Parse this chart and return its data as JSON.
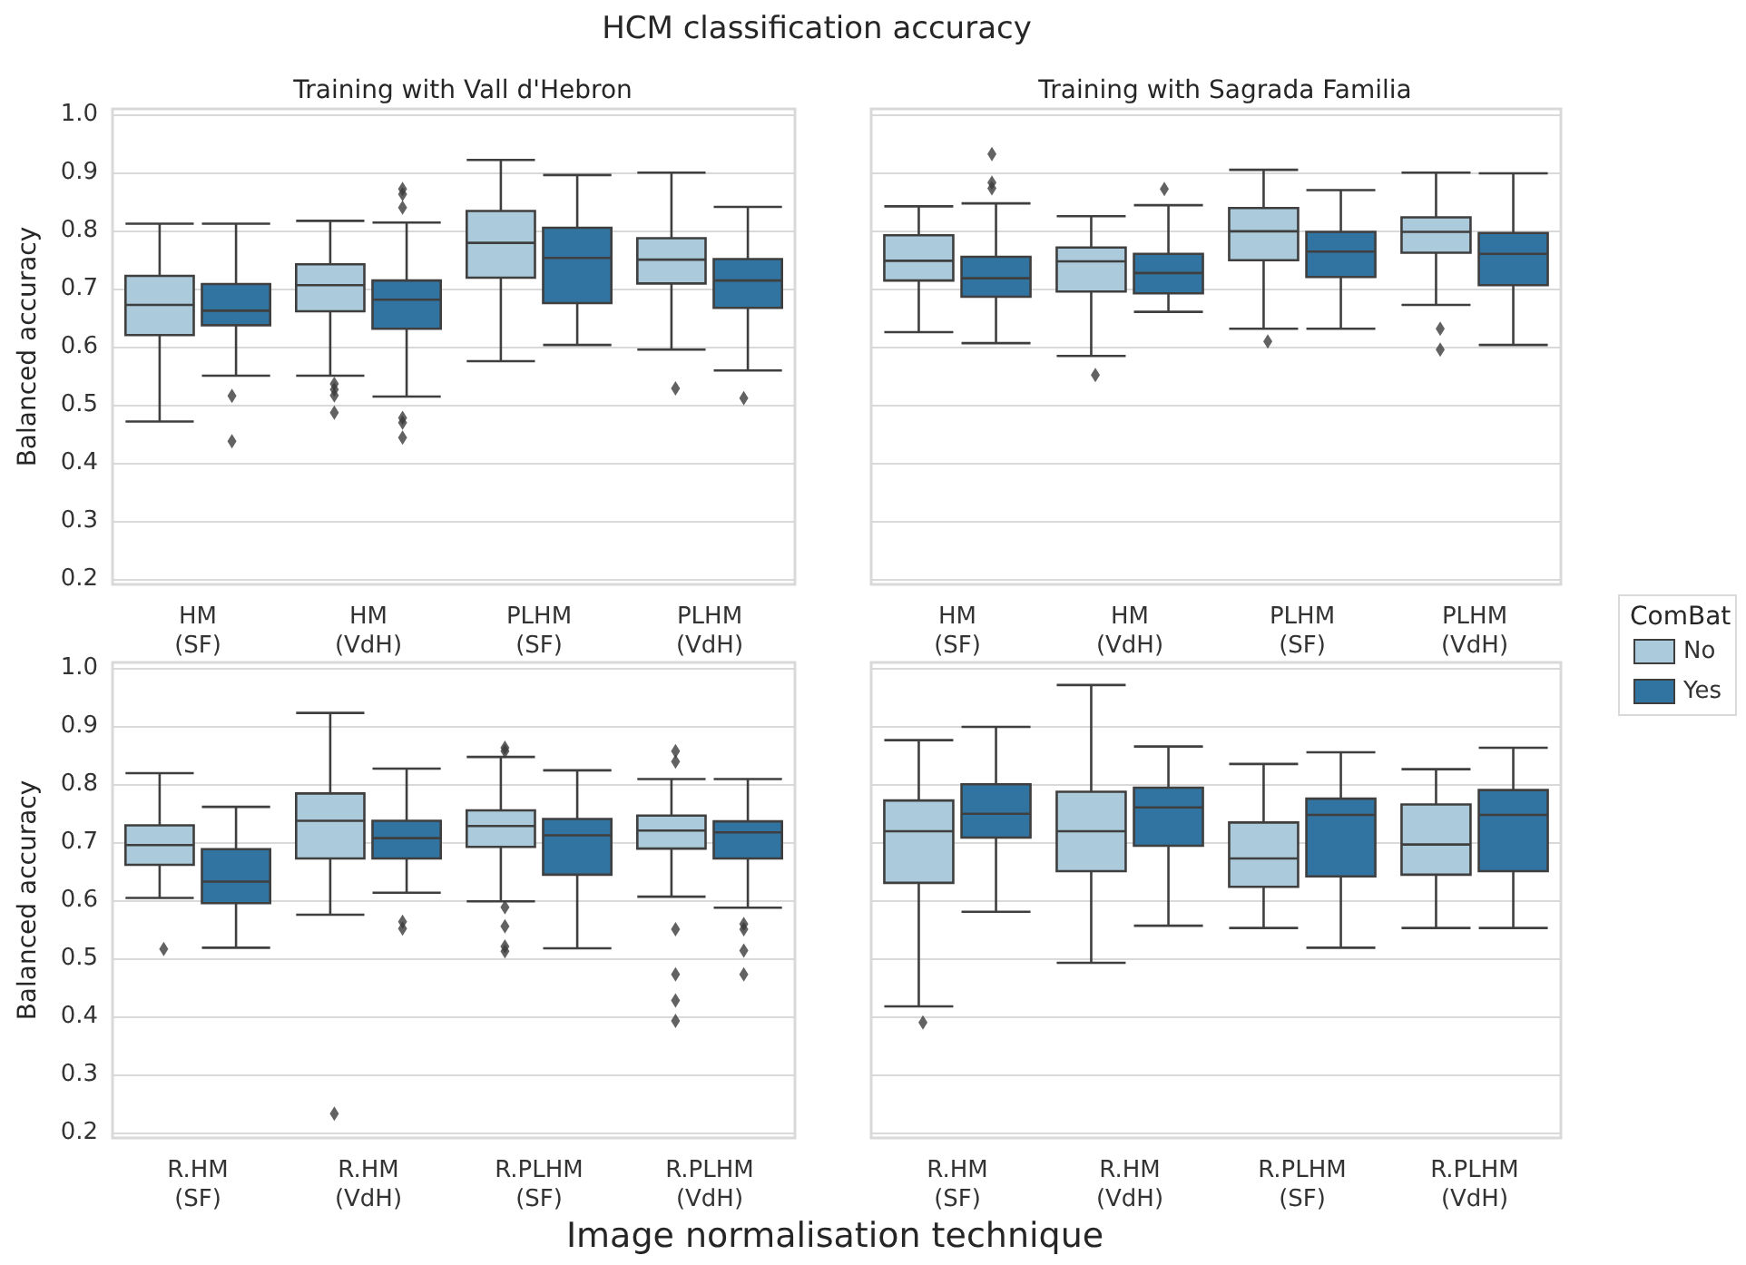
{
  "chart_data": [
    {
      "type": "box",
      "title": "Training with Vall d'Hebron",
      "ylabel": "Balanced accuracy",
      "annotations": [
        "HCM classification accuracy"
      ],
      "categories": [
        "HM\n(SF)",
        "HM\n(VdH)",
        "PLHM\n(SF)",
        "PLHM\n(VdH)"
      ],
      "ylim": [
        0.19,
        1.01
      ],
      "yticks": [
        0.2,
        0.3,
        0.4,
        0.5,
        0.6,
        0.7,
        0.8,
        0.9,
        {
          "value": 1,
          "label": "1.0"
        }
      ],
      "grid": "y",
      "legend": false,
      "marker": "diamond",
      "series": [
        {
          "color": "#abcadb",
          "boxes": [
            {
              "low": 0.471,
              "q1": 0.62,
              "median": 0.672,
              "q3": 0.722,
              "high": 0.812
            },
            {
              "low": 0.55,
              "q1": 0.661,
              "median": 0.706,
              "q3": 0.742,
              "high": 0.817,
              "outliers": [
                0.536,
                0.526,
                0.516,
                0.486
              ]
            },
            {
              "low": 0.575,
              "q1": 0.719,
              "median": 0.779,
              "q3": 0.834,
              "high": 0.922
            },
            {
              "low": 0.595,
              "q1": 0.709,
              "median": 0.75,
              "q3": 0.787,
              "high": 0.9,
              "outliers": [
                0.528
              ]
            }
          ]
        },
        {
          "color": "#3274a1",
          "boxes": [
            {
              "low": 0.55,
              "q1": 0.637,
              "median": 0.662,
              "q3": 0.708,
              "high": 0.812,
              "outliers": [
                0.515,
                0.437
              ]
            },
            {
              "low": 0.514,
              "q1": 0.631,
              "median": 0.681,
              "q3": 0.714,
              "high": 0.814,
              "outliers": [
                0.872,
                0.863,
                0.84,
                0.477,
                0.469,
                0.443
              ]
            },
            {
              "low": 0.603,
              "q1": 0.675,
              "median": 0.753,
              "q3": 0.805,
              "high": 0.896
            },
            {
              "low": 0.559,
              "q1": 0.667,
              "median": 0.714,
              "q3": 0.751,
              "high": 0.841,
              "outliers": [
                0.511
              ]
            }
          ]
        }
      ]
    },
    {
      "type": "box",
      "title": "Training with Sagrada Familia",
      "legend_title": "ComBat",
      "categories": [
        "HM\n(SF)",
        "HM\n(VdH)",
        "PLHM\n(SF)",
        "PLHM\n(VdH)"
      ],
      "ylim": [
        0.19,
        1.01
      ],
      "yticks": [
        0.2,
        0.3,
        0.4,
        0.5,
        0.6,
        0.7,
        0.8,
        0.9,
        1
      ],
      "grid": "y",
      "legend": "right",
      "tick_labels": "x",
      "marker": "diamond",
      "series": [
        {
          "name": "No",
          "color": "#abcadb",
          "boxes": [
            {
              "low": 0.625,
              "q1": 0.714,
              "median": 0.748,
              "q3": 0.792,
              "high": 0.842
            },
            {
              "low": 0.584,
              "q1": 0.695,
              "median": 0.747,
              "q3": 0.771,
              "high": 0.825,
              "outliers": [
                0.551
              ]
            },
            {
              "low": 0.631,
              "q1": 0.749,
              "median": 0.799,
              "q3": 0.839,
              "high": 0.905,
              "outliers": [
                0.609
              ]
            },
            {
              "low": 0.672,
              "q1": 0.762,
              "median": 0.798,
              "q3": 0.823,
              "high": 0.9,
              "outliers": [
                0.631,
                0.595
              ]
            }
          ]
        },
        {
          "name": "Yes",
          "color": "#3274a1",
          "boxes": [
            {
              "low": 0.606,
              "q1": 0.686,
              "median": 0.718,
              "q3": 0.755,
              "high": 0.847,
              "outliers": [
                0.932,
                0.883,
                0.873
              ]
            },
            {
              "low": 0.66,
              "q1": 0.692,
              "median": 0.727,
              "q3": 0.76,
              "high": 0.844,
              "outliers": [
                0.872
              ]
            },
            {
              "low": 0.631,
              "q1": 0.72,
              "median": 0.764,
              "q3": 0.798,
              "high": 0.87
            },
            {
              "low": 0.603,
              "q1": 0.706,
              "median": 0.76,
              "q3": 0.796,
              "high": 0.899
            }
          ]
        }
      ]
    },
    {
      "type": "box",
      "xlabel": "Image normalisation technique",
      "ylabel": "Balanced accuracy",
      "categories": [
        "R.HM\n(SF)",
        "R.HM\n(VdH)",
        "R.PLHM\n(SF)",
        "R.PLHM\n(VdH)"
      ],
      "ylim": [
        0.19,
        1.01
      ],
      "yticks": [
        0.2,
        0.3,
        0.4,
        0.5,
        0.6,
        0.7,
        0.8,
        0.9,
        {
          "value": 1,
          "label": "1.0"
        }
      ],
      "grid": "y",
      "legend": false,
      "marker": "diamond",
      "series": [
        {
          "color": "#abcadb",
          "boxes": [
            {
              "low": 0.604,
              "q1": 0.661,
              "median": 0.695,
              "q3": 0.729,
              "high": 0.819,
              "outliers": [
                0.516
              ]
            },
            {
              "low": 0.575,
              "q1": 0.672,
              "median": 0.737,
              "q3": 0.784,
              "high": 0.923,
              "outliers": [
                0.232
              ]
            },
            {
              "low": 0.598,
              "q1": 0.692,
              "median": 0.728,
              "q3": 0.755,
              "high": 0.847,
              "outliers": [
                0.863,
                0.857,
                0.588,
                0.555,
                0.52,
                0.512
              ]
            },
            {
              "low": 0.606,
              "q1": 0.689,
              "median": 0.72,
              "q3": 0.746,
              "high": 0.809,
              "outliers": [
                0.857,
                0.839,
                0.55,
                0.472,
                0.427,
                0.392
              ]
            }
          ]
        },
        {
          "color": "#3274a1",
          "boxes": [
            {
              "low": 0.518,
              "q1": 0.595,
              "median": 0.632,
              "q3": 0.688,
              "high": 0.761
            },
            {
              "low": 0.613,
              "q1": 0.672,
              "median": 0.707,
              "q3": 0.737,
              "high": 0.827,
              "outliers": [
                0.563,
                0.551
              ]
            },
            {
              "low": 0.517,
              "q1": 0.644,
              "median": 0.712,
              "q3": 0.74,
              "high": 0.824
            },
            {
              "low": 0.587,
              "q1": 0.672,
              "median": 0.717,
              "q3": 0.736,
              "high": 0.809,
              "outliers": [
                0.559,
                0.55,
                0.513,
                0.472
              ]
            }
          ]
        }
      ]
    },
    {
      "type": "box",
      "categories": [
        "R.HM\n(SF)",
        "R.HM\n(VdH)",
        "R.PLHM\n(SF)",
        "R.PLHM\n(VdH)"
      ],
      "ylim": [
        0.19,
        1.01
      ],
      "yticks": [
        0.2,
        0.3,
        0.4,
        0.5,
        0.6,
        0.7,
        0.8,
        0.9,
        1
      ],
      "grid": "y",
      "legend": false,
      "tick_labels": "x",
      "marker": "diamond",
      "series": [
        {
          "color": "#abcadb",
          "boxes": [
            {
              "low": 0.417,
              "q1": 0.63,
              "median": 0.719,
              "q3": 0.772,
              "high": 0.876,
              "outliers": [
                0.389
              ]
            },
            {
              "low": 0.492,
              "q1": 0.65,
              "median": 0.719,
              "q3": 0.787,
              "high": 0.971
            },
            {
              "low": 0.552,
              "q1": 0.623,
              "median": 0.672,
              "q3": 0.734,
              "high": 0.835
            },
            {
              "low": 0.552,
              "q1": 0.644,
              "median": 0.696,
              "q3": 0.765,
              "high": 0.826
            }
          ]
        },
        {
          "color": "#3274a1",
          "boxes": [
            {
              "low": 0.58,
              "q1": 0.708,
              "median": 0.749,
              "q3": 0.8,
              "high": 0.899
            },
            {
              "low": 0.556,
              "q1": 0.694,
              "median": 0.76,
              "q3": 0.794,
              "high": 0.865
            },
            {
              "low": 0.518,
              "q1": 0.641,
              "median": 0.747,
              "q3": 0.775,
              "high": 0.855
            },
            {
              "low": 0.552,
              "q1": 0.65,
              "median": 0.747,
              "q3": 0.79,
              "high": 0.863
            }
          ]
        }
      ]
    }
  ]
}
